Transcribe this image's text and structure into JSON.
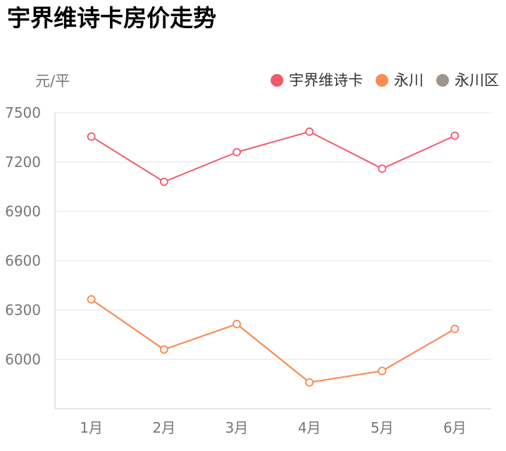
{
  "title": "宇界维诗卡房价走势",
  "y_unit": "元/平",
  "chart_data": {
    "type": "line",
    "title": "宇界维诗卡房价走势",
    "xlabel": "",
    "ylabel": "元/平",
    "categories": [
      "1月",
      "2月",
      "3月",
      "4月",
      "5月",
      "6月"
    ],
    "ylim": [
      5700,
      7500
    ],
    "yticks": [
      6000,
      6300,
      6600,
      6900,
      7200,
      7500
    ],
    "grid": true,
    "legend_position": "top-right",
    "series": [
      {
        "name": "宇界维诗卡",
        "color": "#f2596b",
        "values": [
          7355,
          7080,
          7260,
          7385,
          7160,
          7360
        ]
      },
      {
        "name": "永川",
        "color": "#ff8a50",
        "values": [
          6365,
          6060,
          6215,
          5860,
          5930,
          6185
        ]
      },
      {
        "name": "永川区",
        "color": "#a09490",
        "values": [
          6365,
          6060,
          6215,
          5860,
          5930,
          6185
        ]
      }
    ]
  }
}
